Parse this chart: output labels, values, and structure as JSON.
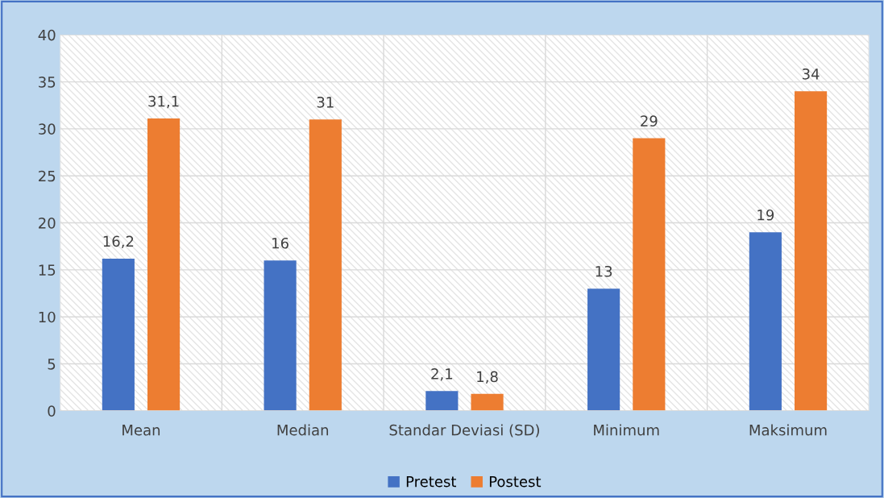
{
  "chart_data": {
    "type": "bar",
    "categories": [
      "Mean",
      "Median",
      "Standar Deviasi (SD)",
      "Minimum",
      "Maksimum"
    ],
    "series": [
      {
        "name": "Pretest",
        "color": "#4472c4",
        "values": [
          16.2,
          16,
          2.1,
          13,
          19
        ],
        "value_labels": [
          "16,2",
          "16",
          "2,1",
          "13",
          "19"
        ]
      },
      {
        "name": "Postest",
        "color": "#ed7d31",
        "values": [
          31.1,
          31,
          1.8,
          29,
          34
        ],
        "value_labels": [
          "31,1",
          "31",
          "1,8",
          "29",
          "34"
        ]
      }
    ],
    "ylim": [
      0,
      40
    ],
    "yticks": [
      0,
      5,
      10,
      15,
      20,
      25,
      30,
      35,
      40
    ],
    "grid": true,
    "legend": "bottom"
  }
}
